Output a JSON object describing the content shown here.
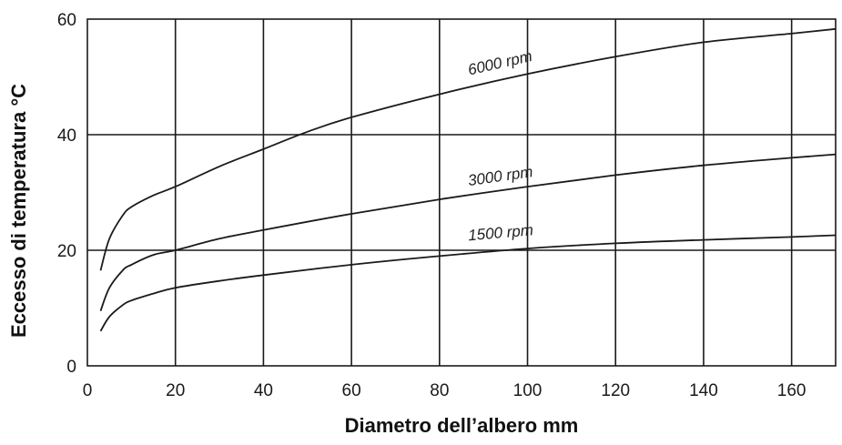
{
  "chart_data": {
    "type": "line",
    "title": "",
    "xlabel": "Diametro dell’albero mm",
    "ylabel": "Eccesso di temperatura  °C",
    "xlim": [
      0,
      170
    ],
    "ylim": [
      0,
      60
    ],
    "xticks": [
      0,
      20,
      40,
      60,
      80,
      100,
      120,
      140,
      160
    ],
    "yticks": [
      0,
      20,
      40,
      60
    ],
    "grid": true,
    "legend": "none",
    "series": [
      {
        "name": "6000 rpm",
        "x": [
          3,
          5,
          8,
          10,
          15,
          20,
          30,
          40,
          50,
          60,
          80,
          100,
          120,
          140,
          160,
          170
        ],
        "y": [
          16.5,
          22,
          26,
          27.5,
          29.5,
          31,
          34.5,
          37.5,
          40.5,
          43,
          47,
          50.5,
          53.5,
          56,
          57.5,
          58.3
        ]
      },
      {
        "name": "3000 rpm",
        "x": [
          3,
          5,
          8,
          10,
          15,
          20,
          30,
          40,
          60,
          80,
          100,
          120,
          140,
          160,
          170
        ],
        "y": [
          9.5,
          13.5,
          16.5,
          17.5,
          19.2,
          20,
          22,
          23.5,
          26.3,
          28.8,
          31,
          33,
          34.7,
          36,
          36.6
        ]
      },
      {
        "name": "1500 rpm",
        "x": [
          3,
          5,
          8,
          10,
          15,
          20,
          30,
          40,
          60,
          80,
          100,
          120,
          140,
          160,
          170
        ],
        "y": [
          6,
          8.5,
          10.5,
          11.3,
          12.5,
          13.5,
          14.7,
          15.7,
          17.5,
          19,
          20.3,
          21.2,
          21.8,
          22.3,
          22.6
        ]
      }
    ],
    "curve_labels": [
      {
        "text": "6000 rpm",
        "series": "6000 rpm",
        "x": 94,
        "y": 50.3
      },
      {
        "text": "3000 rpm",
        "series": "3000 rpm",
        "x": 94,
        "y": 30.7
      },
      {
        "text": "1500 rpm",
        "series": "1500 rpm",
        "x": 94,
        "y": 20.9
      }
    ]
  }
}
